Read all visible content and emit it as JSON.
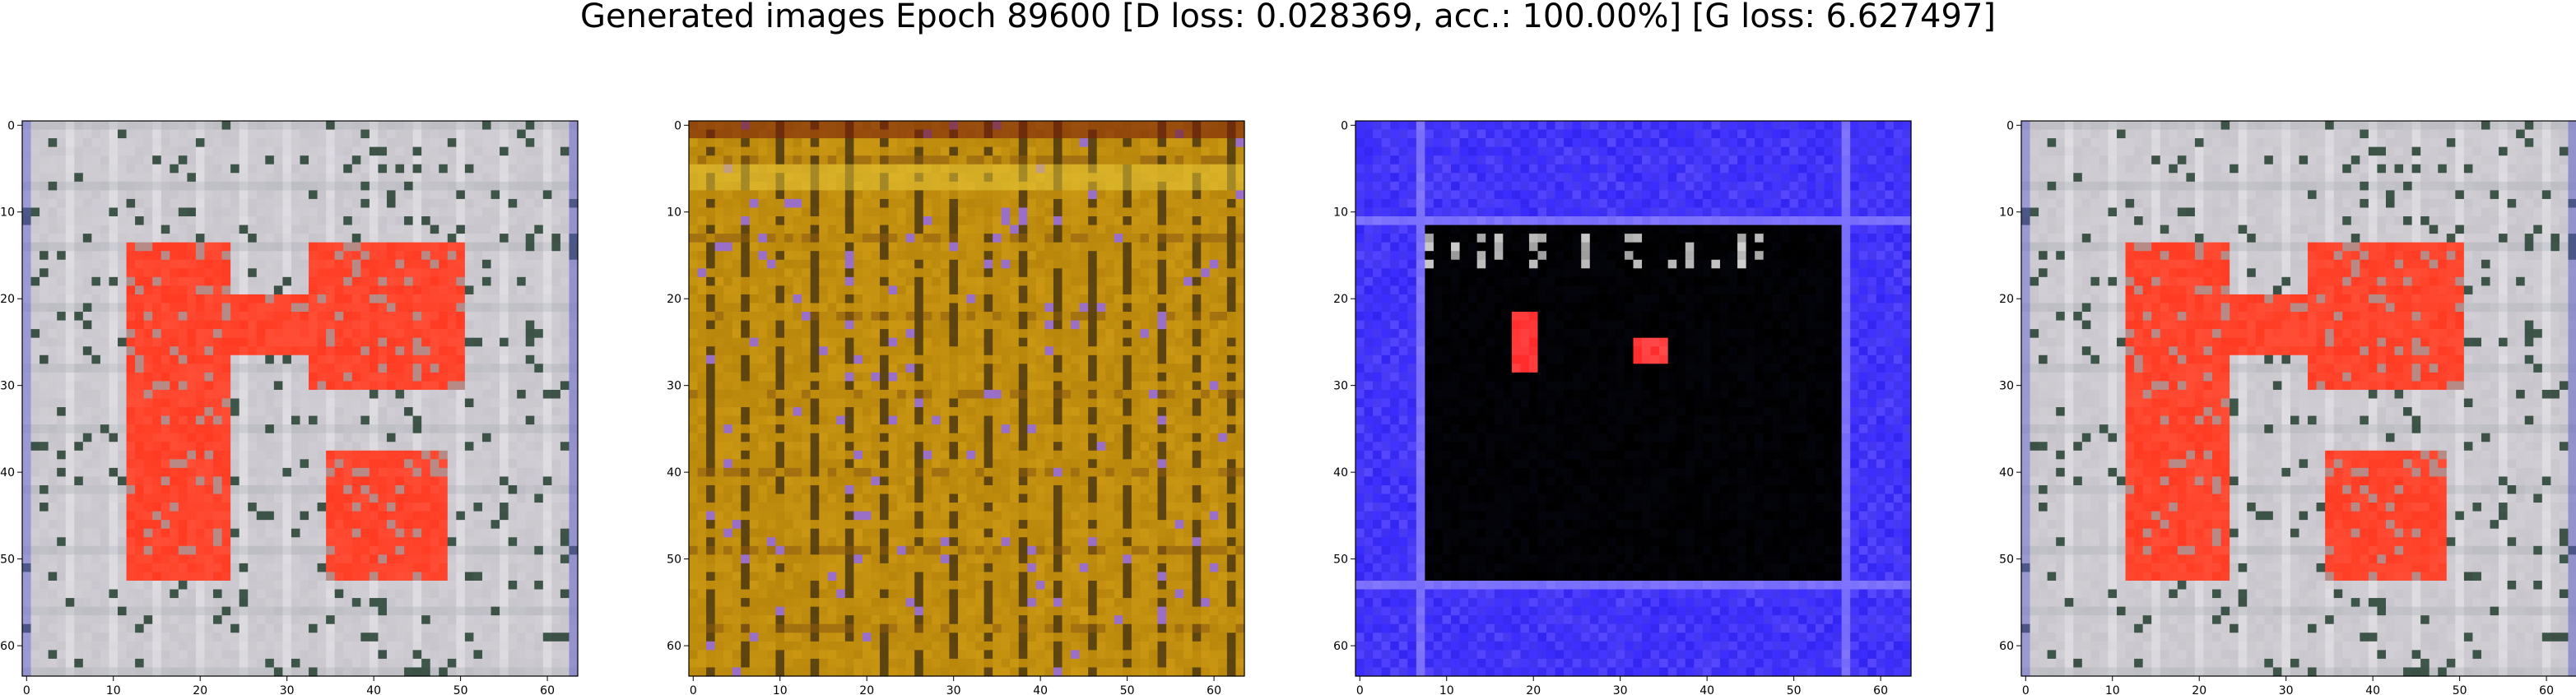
{
  "figure": {
    "title": "Generated images Epoch 89600 [D loss: 0.028369, acc.: 100.00%] [G loss: 6.627497]"
  },
  "chart_data": [
    {
      "type": "heatmap",
      "description_of_content": "generated-image-panel",
      "palette": [
        "#c8c6cc",
        "#ff3b22",
        "#d9d4dc",
        "#9aa3a8",
        "#4f7a63"
      ],
      "dominant_colors": {
        "background": "#c8c6cc",
        "object": "#ff3b22"
      },
      "xlim": [
        0,
        63
      ],
      "ylim": [
        63,
        0
      ],
      "x_ticks": [
        0,
        10,
        20,
        30,
        40,
        50,
        60
      ],
      "y_ticks": [
        0,
        10,
        20,
        30,
        40,
        50,
        60
      ]
    },
    {
      "type": "heatmap",
      "description_of_content": "generated-image-panel",
      "palette": [
        "#b8860b",
        "#8b5a0f",
        "#d4a017",
        "#3a2a10",
        "#9a6fc8"
      ],
      "dominant_colors": {
        "background": "#b8860b",
        "object": "#3a2a10"
      },
      "xlim": [
        0,
        63
      ],
      "ylim": [
        63,
        0
      ],
      "x_ticks": [
        0,
        10,
        20,
        30,
        40,
        50,
        60
      ],
      "y_ticks": [
        0,
        10,
        20,
        30,
        40,
        50,
        60
      ]
    },
    {
      "type": "heatmap",
      "description_of_content": "generated-image-panel",
      "palette": [
        "#3a2bff",
        "#000000",
        "#ff2a2a",
        "#ffffff",
        "#6a5cff"
      ],
      "dominant_colors": {
        "background": "#3a2bff",
        "object": "#000000"
      },
      "xlim": [
        0,
        63
      ],
      "ylim": [
        63,
        0
      ],
      "x_ticks": [
        0,
        10,
        20,
        30,
        40,
        50,
        60
      ],
      "y_ticks": [
        0,
        10,
        20,
        30,
        40,
        50,
        60
      ]
    },
    {
      "type": "heatmap",
      "description_of_content": "generated-image-panel",
      "palette": [
        "#c8c6cc",
        "#ff3b22",
        "#d9d4dc",
        "#9aa3a8",
        "#4f7a63"
      ],
      "dominant_colors": {
        "background": "#c8c6cc",
        "object": "#ff3b22"
      },
      "xlim": [
        0,
        63
      ],
      "ylim": [
        63,
        0
      ],
      "x_ticks": [
        0,
        10,
        20,
        30,
        40,
        50,
        60
      ],
      "y_ticks": [
        0,
        10,
        20,
        30,
        40,
        50,
        60
      ]
    }
  ]
}
